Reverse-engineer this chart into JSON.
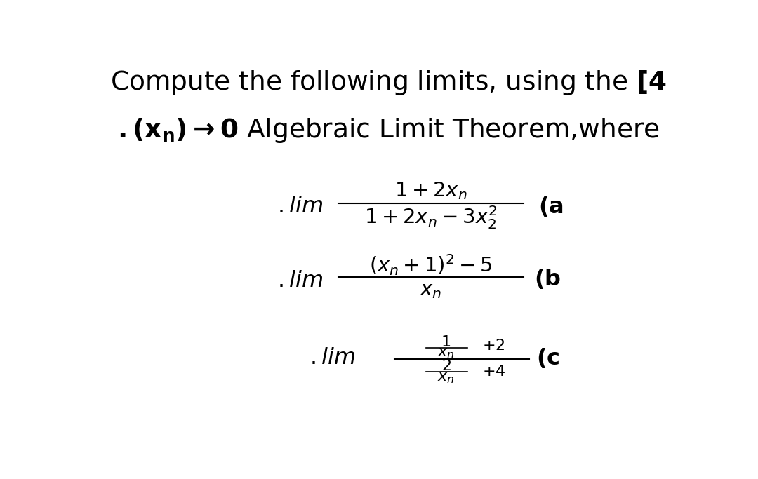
{
  "background_color": "#ffffff",
  "text_color": "#000000",
  "figsize": [
    10.8,
    6.83
  ],
  "dpi": 100
}
